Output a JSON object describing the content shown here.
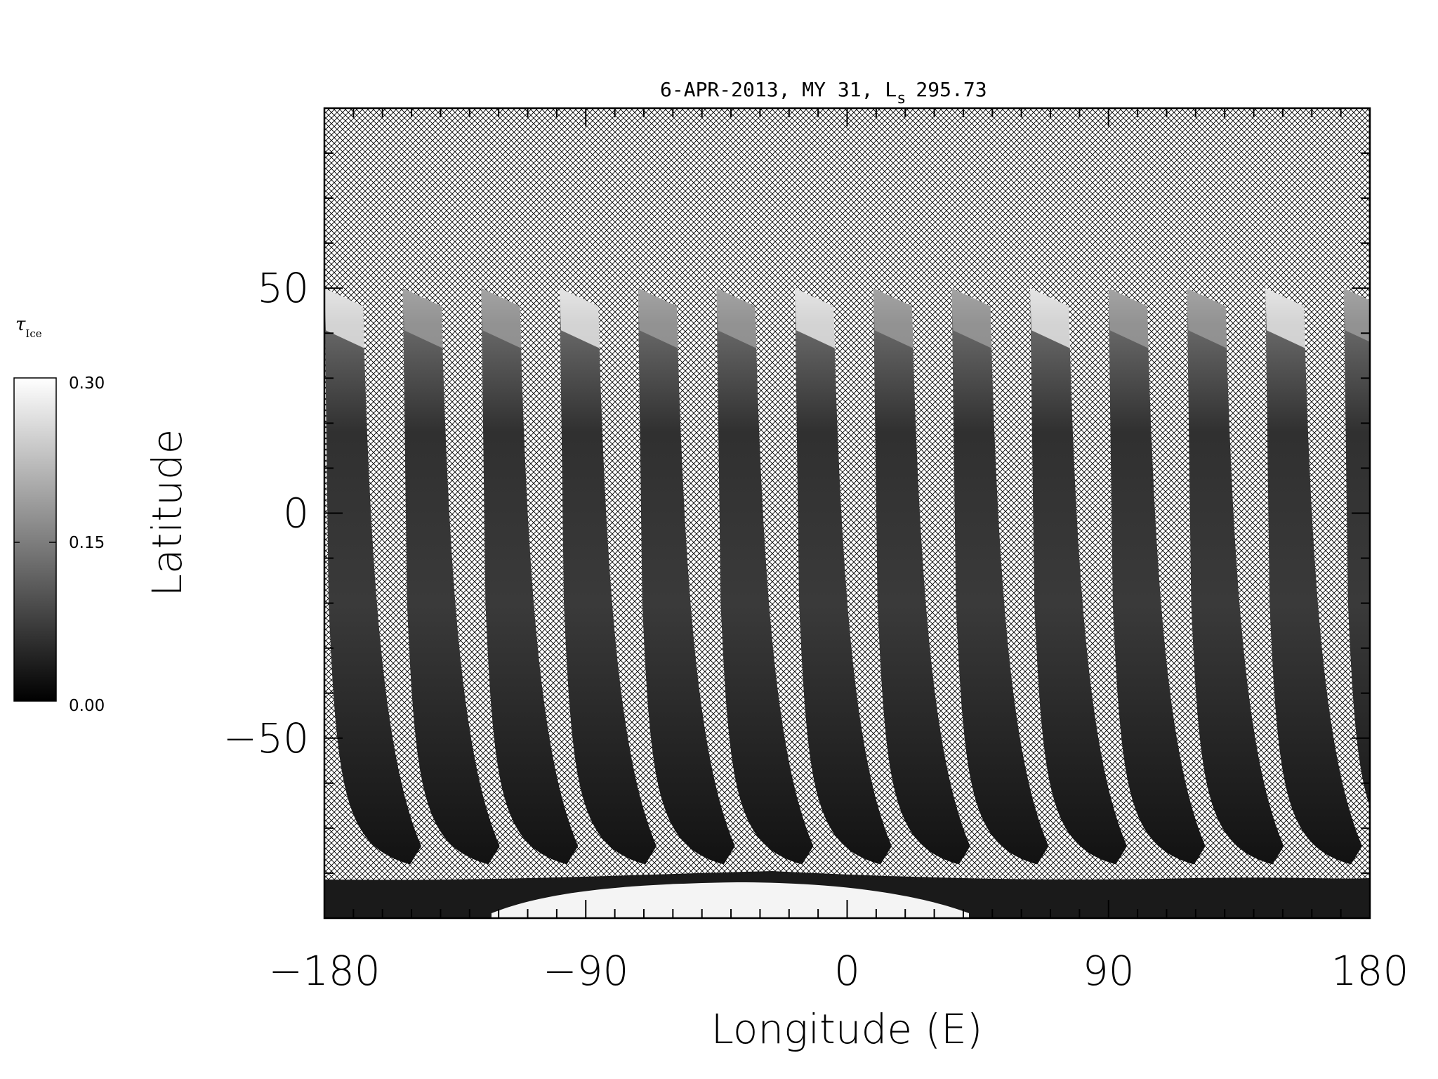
{
  "chart_data": {
    "type": "heatmap",
    "title": "6-APR-2013, MY 31,  L",
    "title_subscript": "s",
    "title_value": "295.73",
    "xlabel": "Longitude (E)",
    "ylabel": "Latitude",
    "xlim": [
      -180,
      180
    ],
    "ylim": [
      -90,
      90
    ],
    "xticks": [
      -180,
      -90,
      0,
      90,
      180
    ],
    "xtick_labels": [
      "−180",
      "−90",
      "0",
      "90",
      "180"
    ],
    "yticks": [
      -50,
      0,
      50
    ],
    "ytick_labels": [
      "−50",
      "0",
      "50"
    ],
    "missing_data_pattern": "crosshatch",
    "colormap": "grayscale",
    "colorbar": {
      "label": "τ",
      "label_subscript": "Ice",
      "min": 0.0,
      "max": 0.3,
      "tick_labels": [
        "0.30",
        "0.15",
        "0.00"
      ]
    },
    "swaths": [
      {
        "lon_top": -180
      },
      {
        "lon_top": -153
      },
      {
        "lon_top": -126
      },
      {
        "lon_top": -99
      },
      {
        "lon_top": -72
      },
      {
        "lon_top": -45
      },
      {
        "lon_top": -18
      },
      {
        "lon_top": 9
      },
      {
        "lon_top": 36
      },
      {
        "lon_top": 63
      },
      {
        "lon_top": 90
      },
      {
        "lon_top": 117
      },
      {
        "lon_top": 144
      },
      {
        "lon_top": 171
      }
    ],
    "grid": false
  },
  "colors": {
    "background": "#ffffff",
    "hatch": "#000000",
    "swath_dark": "#141414",
    "swath_mid": "#3c3c3c",
    "ice_high": "#f4f4f4"
  }
}
